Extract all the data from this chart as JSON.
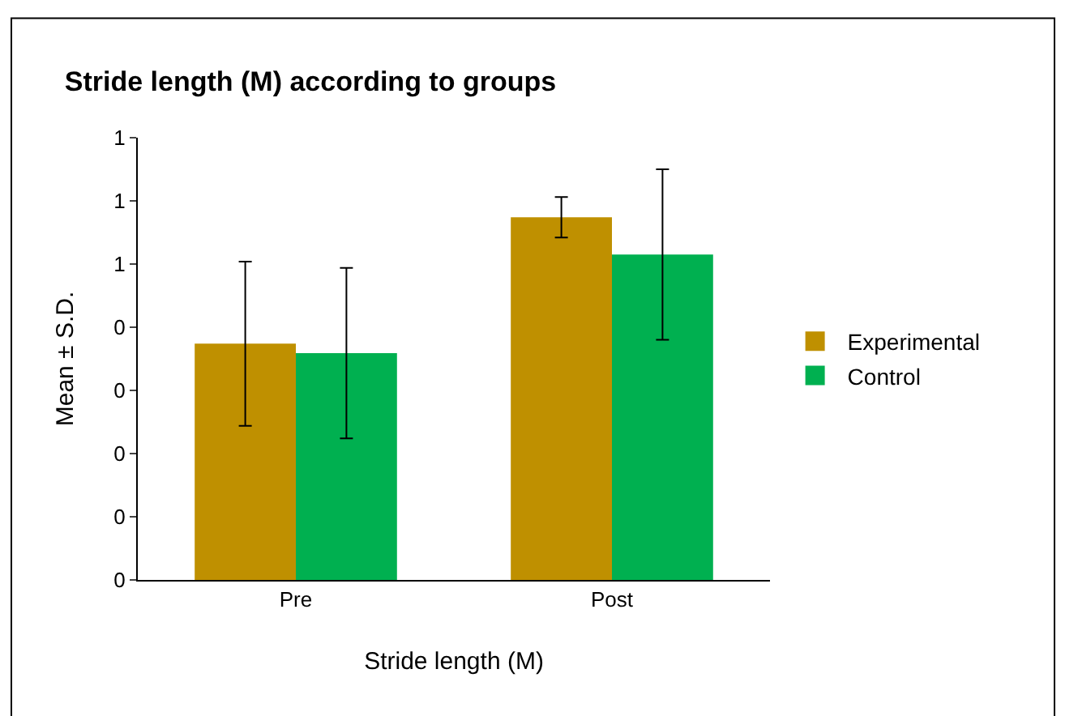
{
  "chart_data": {
    "type": "bar",
    "title": "Stride length (M) according to groups",
    "xlabel": "Stride length (M)",
    "ylabel": "Mean ± S.D.",
    "categories": [
      "Pre",
      "Post"
    ],
    "series": [
      {
        "name": "Experimental",
        "color": "#bf9000",
        "values": [
          0.374,
          0.574
        ],
        "errors": [
          0.13,
          0.032
        ]
      },
      {
        "name": "Control",
        "color": "#00b050",
        "values": [
          0.359,
          0.515
        ],
        "errors": [
          0.135,
          0.135
        ]
      }
    ],
    "ylim": [
      0,
      0.7
    ],
    "yticks": [
      {
        "value": 0,
        "label": "0"
      },
      {
        "value": 0.1,
        "label": "0"
      },
      {
        "value": 0.2,
        "label": "0"
      },
      {
        "value": 0.3,
        "label": "0"
      },
      {
        "value": 0.4,
        "label": "0"
      },
      {
        "value": 0.5,
        "label": "1"
      },
      {
        "value": 0.6,
        "label": "1"
      },
      {
        "value": 0.7,
        "label": "1"
      }
    ],
    "grid": false,
    "legend": "right"
  }
}
